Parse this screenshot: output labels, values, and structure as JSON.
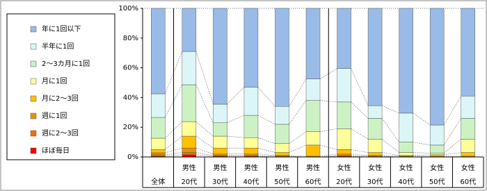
{
  "chart_data": {
    "type": "stacked_bar_100",
    "categories": [
      [
        "全体"
      ],
      [
        "男性",
        "20代"
      ],
      [
        "男性",
        "30代"
      ],
      [
        "男性",
        "40代"
      ],
      [
        "男性",
        "50代"
      ],
      [
        "男性",
        "60代"
      ],
      [
        "女性",
        "20代"
      ],
      [
        "女性",
        "30代"
      ],
      [
        "女性",
        "40代"
      ],
      [
        "女性",
        "50代"
      ],
      [
        "女性",
        "60代"
      ]
    ],
    "series": [
      {
        "name": "ほぼ毎日",
        "color": "#ff0000",
        "values": [
          0.5,
          1.5,
          0.5,
          0.5,
          0,
          0,
          0.5,
          0,
          0,
          0,
          0
        ]
      },
      {
        "name": "週に2～3回",
        "color": "#ff6a00",
        "values": [
          0.9,
          1.5,
          0.5,
          0.5,
          0.5,
          0,
          0.5,
          0.5,
          0,
          0,
          0
        ]
      },
      {
        "name": "週に1回",
        "color": "#e69500",
        "values": [
          1.4,
          3,
          1,
          1,
          0.5,
          0.5,
          1,
          0.5,
          0.5,
          0.5,
          0.5
        ]
      },
      {
        "name": "月に2～3回",
        "color": "#ffc000",
        "values": [
          2.2,
          8,
          4,
          4,
          2,
          7.5,
          3,
          2,
          0.5,
          1,
          2.5
        ]
      },
      {
        "name": "月に1回",
        "color": "#ffff99",
        "values": [
          7.6,
          9.8,
          8,
          7,
          6,
          9,
          14,
          9,
          2,
          1,
          9
        ]
      },
      {
        "name": "2～3カ月に1回",
        "color": "#ccf2c4",
        "values": [
          14,
          24.8,
          9,
          15,
          13,
          21,
          18,
          14,
          7,
          5.5,
          14
        ]
      },
      {
        "name": "半年に1回",
        "color": "#dcf6f8",
        "values": [
          15.9,
          22.4,
          12.5,
          19,
          12,
          14.5,
          22.5,
          8.5,
          19.5,
          13.5,
          15
        ]
      },
      {
        "name": "年に1回以下",
        "color": "#99bbe8",
        "values": [
          57.5,
          29,
          64.5,
          53,
          66,
          47.5,
          40.5,
          65.5,
          70.5,
          78.5,
          59
        ]
      }
    ],
    "ylim": [
      0,
      100
    ],
    "yticks": [
      {
        "value": 0,
        "label": "0%"
      },
      {
        "value": 20,
        "label": "20%"
      },
      {
        "value": 40,
        "label": "40%"
      },
      {
        "value": 60,
        "label": "60%"
      },
      {
        "value": 80,
        "label": "80%"
      },
      {
        "value": 100,
        "label": "100%"
      }
    ]
  }
}
